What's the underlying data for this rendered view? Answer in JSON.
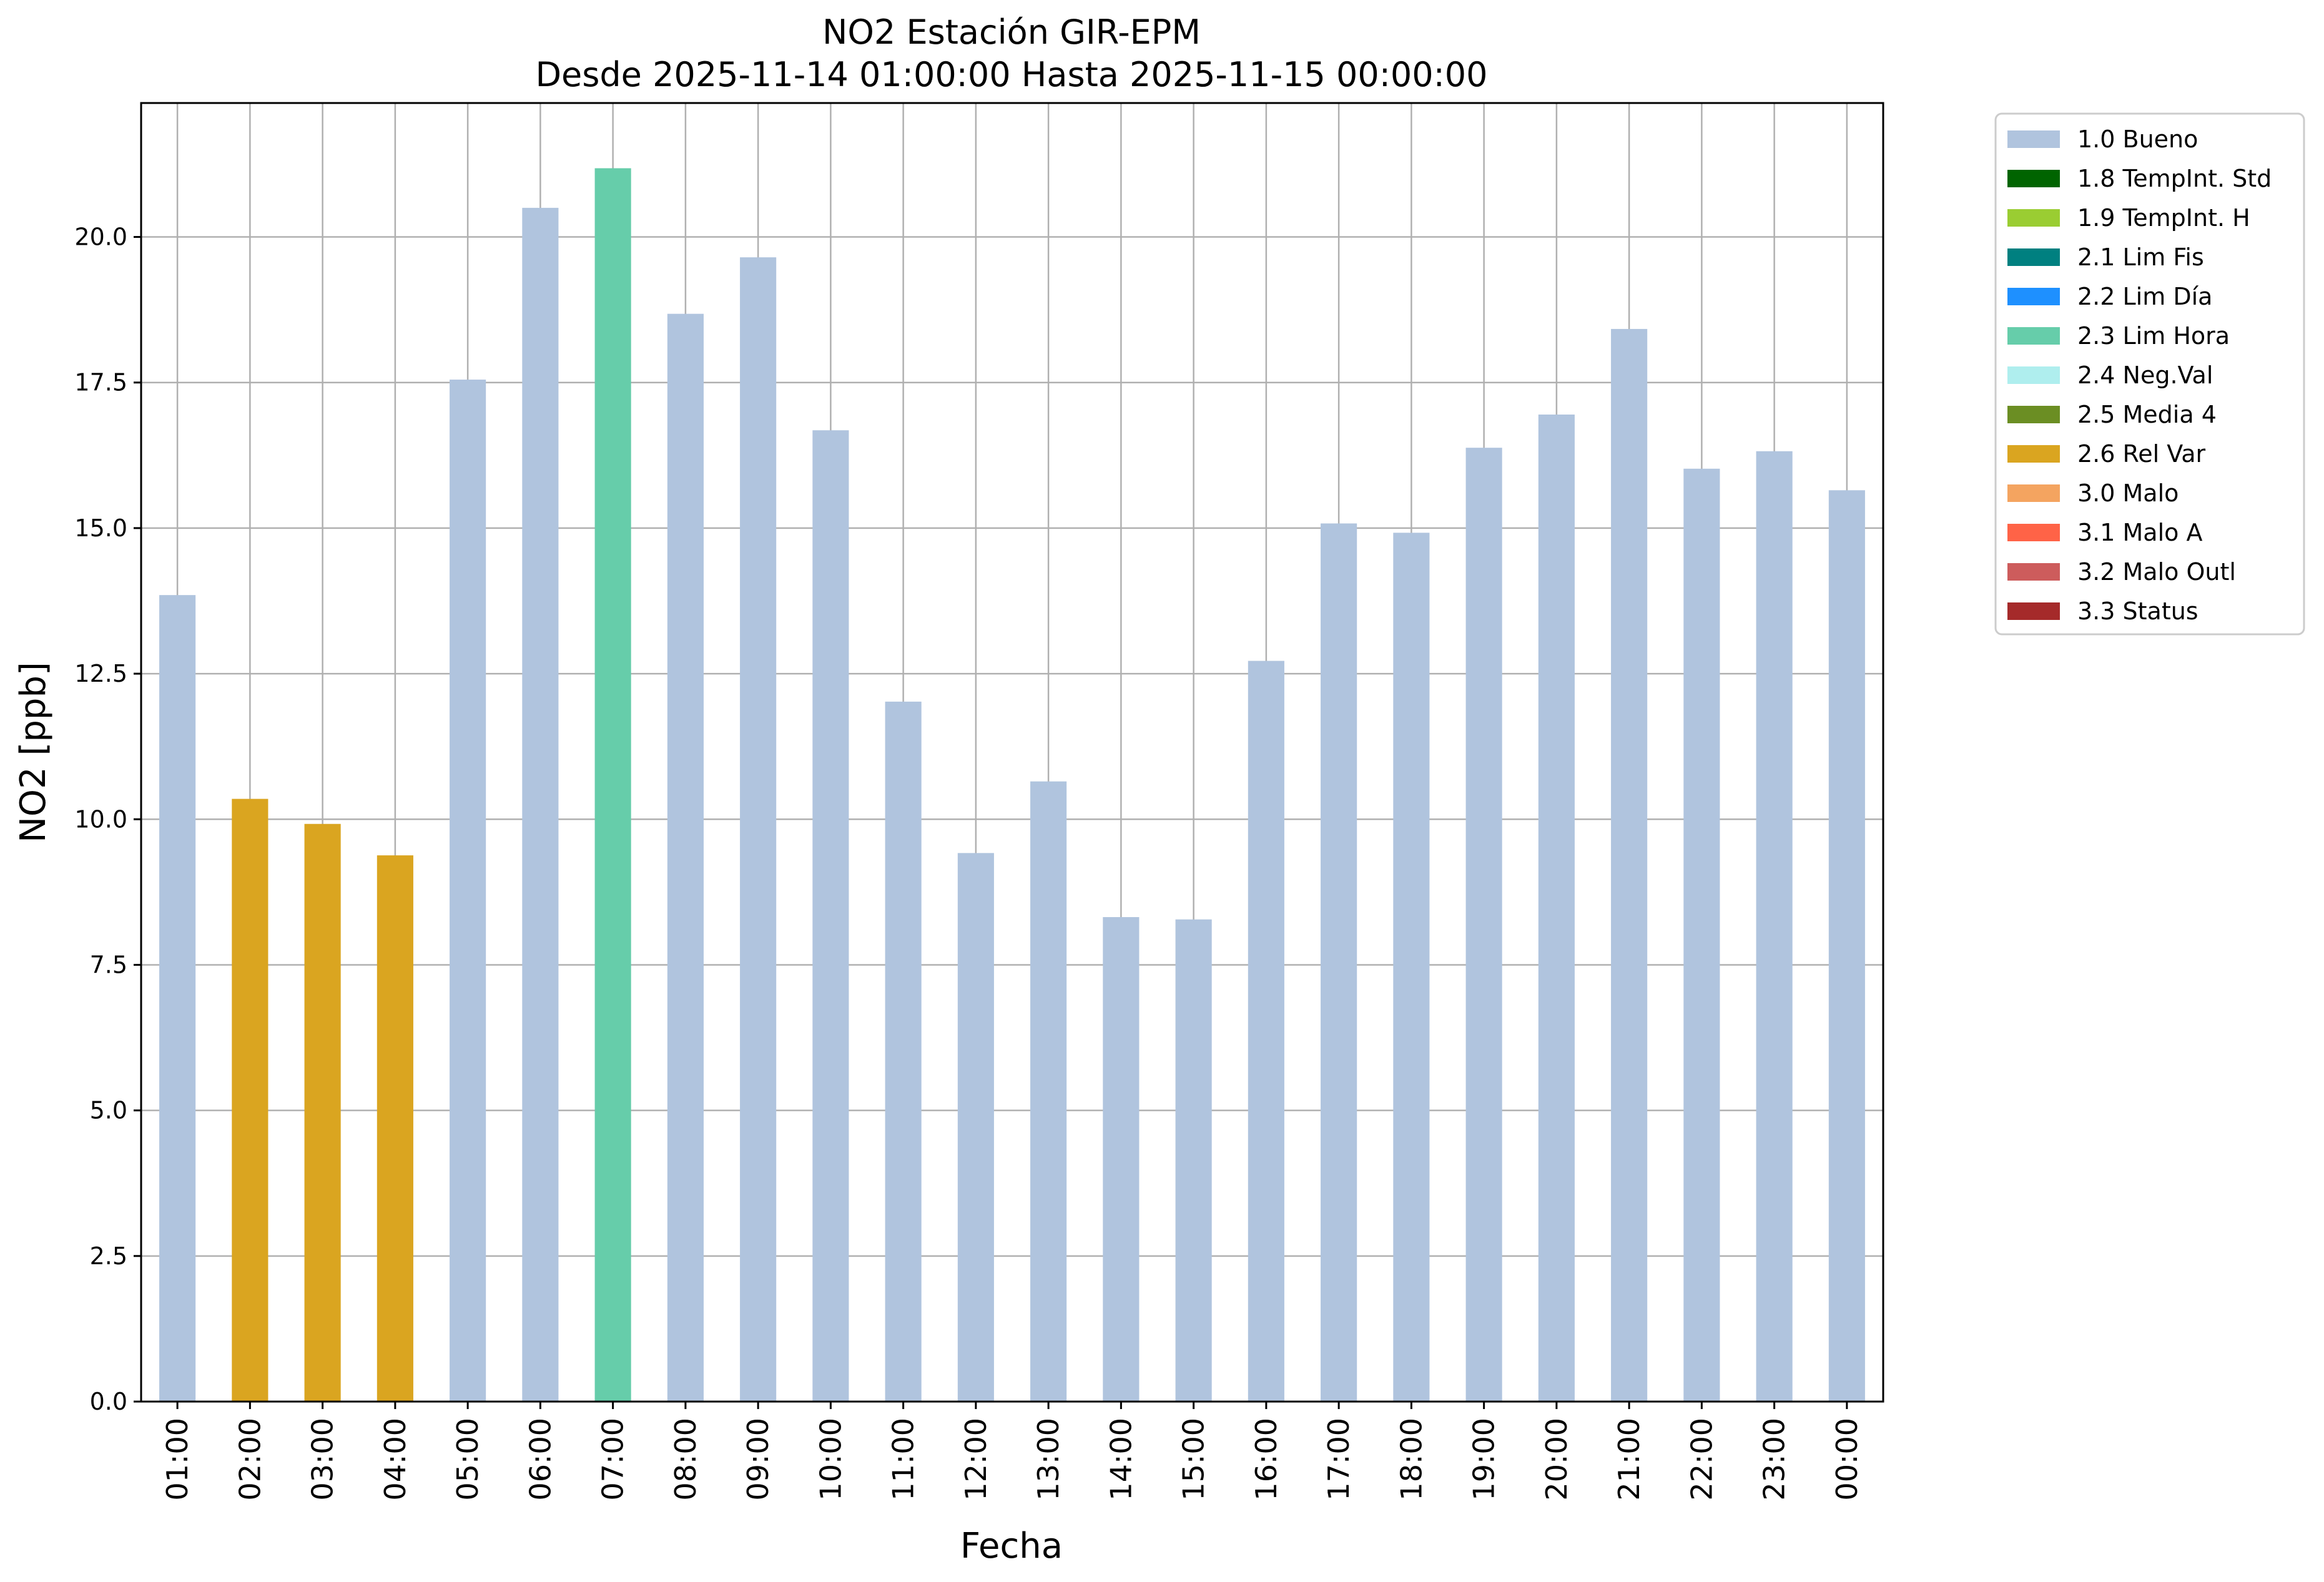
{
  "chart_data": {
    "type": "bar",
    "title": "NO2 Estación GIR-EPM",
    "subtitle": "Desde 2025-11-14 01:00:00 Hasta 2025-11-15 00:00:00",
    "xlabel": "Fecha",
    "ylabel": "NO2 [ppb]",
    "ylim": [
      0,
      22.3
    ],
    "yticks": [
      "0.0",
      "2.5",
      "5.0",
      "7.5",
      "10.0",
      "12.5",
      "15.0",
      "17.5",
      "20.0"
    ],
    "grid": true,
    "legend_position": "outside-right",
    "categories": [
      "01:00",
      "02:00",
      "03:00",
      "04:00",
      "05:00",
      "06:00",
      "07:00",
      "08:00",
      "09:00",
      "10:00",
      "11:00",
      "12:00",
      "13:00",
      "14:00",
      "15:00",
      "16:00",
      "17:00",
      "18:00",
      "19:00",
      "20:00",
      "21:00",
      "22:00",
      "23:00",
      "00:00"
    ],
    "values": [
      13.85,
      10.35,
      9.92,
      9.38,
      17.55,
      20.5,
      21.18,
      18.68,
      19.65,
      16.68,
      12.02,
      9.42,
      10.65,
      8.32,
      8.28,
      12.72,
      15.08,
      14.92,
      16.38,
      16.95,
      18.42,
      16.02,
      16.32,
      15.65
    ],
    "flags": [
      "1.0",
      "2.6",
      "2.6",
      "2.6",
      "1.0",
      "1.0",
      "2.3",
      "1.0",
      "1.0",
      "1.0",
      "1.0",
      "1.0",
      "1.0",
      "1.0",
      "1.0",
      "1.0",
      "1.0",
      "1.0",
      "1.0",
      "1.0",
      "1.0",
      "1.0",
      "1.0",
      "1.0"
    ],
    "legend": [
      {
        "code": "1.0",
        "label": "1.0 Bueno",
        "color": "#b0c4de"
      },
      {
        "code": "1.8",
        "label": "1.8 TempInt. Std",
        "color": "#006400"
      },
      {
        "code": "1.9",
        "label": "1.9 TempInt. H",
        "color": "#9acd32"
      },
      {
        "code": "2.1",
        "label": "2.1 Lim Fis",
        "color": "#008080"
      },
      {
        "code": "2.2",
        "label": "2.2 Lim Día",
        "color": "#1e90ff"
      },
      {
        "code": "2.3",
        "label": "2.3 Lim Hora",
        "color": "#66cdaa"
      },
      {
        "code": "2.4",
        "label": "2.4 Neg.Val",
        "color": "#afeeee"
      },
      {
        "code": "2.5",
        "label": "2.5 Media 4",
        "color": "#6b8e23"
      },
      {
        "code": "2.6",
        "label": "2.6 Rel Var",
        "color": "#daa520"
      },
      {
        "code": "3.0",
        "label": "3.0 Malo",
        "color": "#f4a460"
      },
      {
        "code": "3.1",
        "label": "3.1 Malo A",
        "color": "#ff6347"
      },
      {
        "code": "3.2",
        "label": "3.2 Malo Outl",
        "color": "#cd5c5c"
      },
      {
        "code": "3.3",
        "label": "3.3 Status",
        "color": "#a52a2a"
      }
    ]
  }
}
